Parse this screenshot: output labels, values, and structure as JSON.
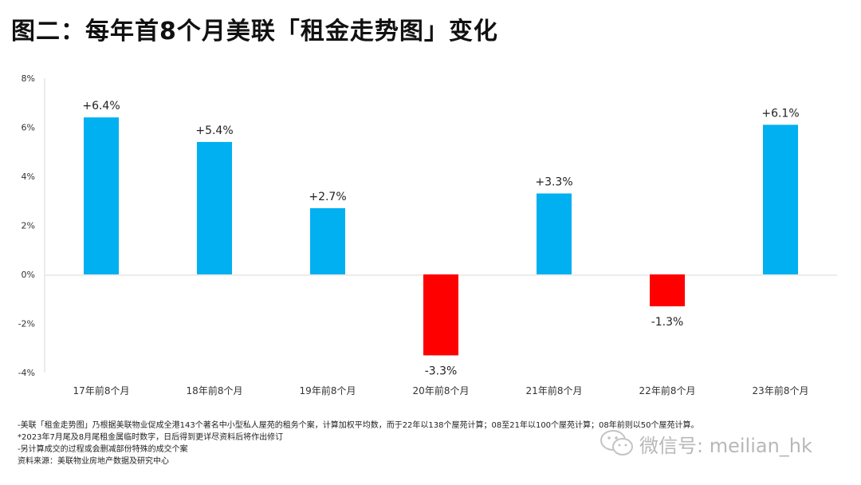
{
  "header": {
    "title": "图二：每年首8个月美联「租金走势图」变化"
  },
  "chart_data": {
    "type": "bar",
    "categories": [
      "17年前8个月",
      "18年前8个月",
      "19年前8个月",
      "20年前8个月",
      "21年前8个月",
      "22年前8个月",
      "23年前8个月"
    ],
    "values": [
      6.4,
      5.4,
      2.7,
      -3.3,
      3.3,
      -1.3,
      6.1
    ],
    "data_labels": [
      "+6.4%",
      "+5.4%",
      "+2.7%",
      "-3.3%",
      "+3.3%",
      "-1.3%",
      "+6.1%"
    ],
    "yticks": [
      "8%",
      "6%",
      "4%",
      "2%",
      "0%",
      "-2%",
      "-4%"
    ],
    "ylim": [
      -4,
      8
    ],
    "grid": false,
    "colors": {
      "positive": "#00b0f0",
      "negative": "#ff0000"
    }
  },
  "notes": [
    "-美联「租金走势图」乃根据美联物业促成全港143个著名中小型私人屋苑的租务个案，计算加权平均数，而于22年以138个屋苑计算；08至21年以100个屋苑计算；08年前则以50个屋苑计算。",
    "*2023年7月尾及8月尾租金属临时数字，日后得到更详尽资料后将作出修订",
    "-另计算成交的过程或会删减部份特殊的成交个案",
    "资料来源：美联物业房地产数据及研究中心"
  ],
  "watermark": {
    "text": "微信号: meilian_hk",
    "icon": "wechat-icon"
  }
}
